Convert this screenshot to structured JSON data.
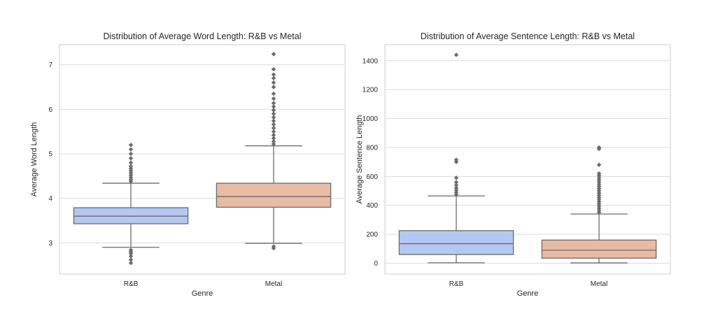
{
  "chart_data": [
    {
      "type": "box",
      "title": "Distribution of Average Word Length: R&B vs Metal",
      "xlabel": "Genre",
      "ylabel": "Average Word Length",
      "categories": [
        "R&B",
        "Metal"
      ],
      "ylim": [
        2.3,
        7.45
      ],
      "yticks": [
        3,
        4,
        5,
        6,
        7
      ],
      "grid": true,
      "legend": "none",
      "boxes": [
        {
          "name": "R&B",
          "color": "#b4c8f2",
          "whislo": 2.9,
          "q1": 3.43,
          "med": 3.6,
          "q3": 3.79,
          "whishi": 4.34,
          "fliers": [
            2.55,
            2.62,
            2.7,
            2.76,
            2.8,
            2.84,
            4.38,
            4.42,
            4.47,
            4.52,
            4.57,
            4.62,
            4.67,
            4.72,
            4.8,
            4.9,
            5.0,
            5.1,
            5.2
          ]
        },
        {
          "name": "Metal",
          "color": "#e8bba4",
          "whislo": 2.99,
          "q1": 3.8,
          "med": 4.04,
          "q3": 4.34,
          "whishi": 5.18,
          "fliers": [
            2.88,
            2.92,
            5.22,
            5.28,
            5.35,
            5.42,
            5.5,
            5.58,
            5.66,
            5.74,
            5.82,
            5.9,
            5.98,
            6.06,
            6.14,
            6.24,
            6.35,
            6.5,
            6.6,
            6.7,
            6.78,
            6.9,
            7.24
          ]
        }
      ]
    },
    {
      "type": "box",
      "title": "Distribution of Average Sentence Length: R&B vs Metal",
      "xlabel": "Genre",
      "ylabel": "Average Sentence Length",
      "categories": [
        "R&B",
        "Metal"
      ],
      "ylim": [
        -75,
        1510
      ],
      "yticks": [
        0,
        200,
        400,
        600,
        800,
        1000,
        1200,
        1400
      ],
      "grid": true,
      "legend": "none",
      "boxes": [
        {
          "name": "R&B",
          "color": "#b4c8f2",
          "whislo": 3,
          "q1": 60,
          "med": 135,
          "q3": 225,
          "whishi": 465,
          "fliers": [
            475,
            490,
            505,
            520,
            540,
            560,
            590,
            700,
            715,
            1440
          ]
        },
        {
          "name": "Metal",
          "color": "#e8bba4",
          "whislo": 2,
          "q1": 35,
          "med": 90,
          "q3": 160,
          "whishi": 340,
          "fliers": [
            350,
            365,
            380,
            395,
            410,
            425,
            440,
            455,
            470,
            485,
            500,
            515,
            530,
            545,
            560,
            575,
            590,
            605,
            620,
            680,
            790,
            800
          ]
        }
      ]
    }
  ]
}
